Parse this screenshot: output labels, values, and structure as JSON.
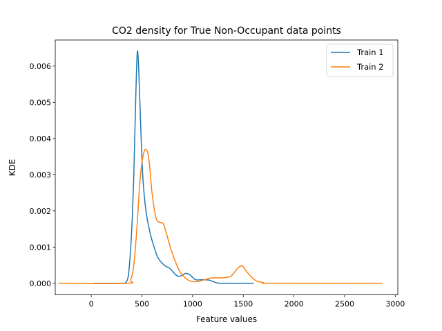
{
  "chart_data": {
    "type": "line",
    "title": "CO2 density for True Non-Occupant data points",
    "xlabel": "Feature values",
    "ylabel": "KDE",
    "xlim": [
      -355,
      3025
    ],
    "ylim": [
      -0.00032,
      0.00672
    ],
    "xticks": [
      0,
      500,
      1000,
      1500,
      2000,
      2500,
      3000
    ],
    "yticks": [
      0.0,
      0.001,
      0.002,
      0.003,
      0.004,
      0.005,
      0.006
    ],
    "ytick_labels": [
      "0.000",
      "0.001",
      "0.002",
      "0.003",
      "0.004",
      "0.005",
      "0.006"
    ],
    "grid": false,
    "legend_position": "top-right",
    "series": [
      {
        "name": "Train 1",
        "color": "#1f77b4",
        "points": [
          [
            30,
            0.0
          ],
          [
            300,
            0.0
          ],
          [
            340,
            2e-05
          ],
          [
            370,
            0.0003
          ],
          [
            400,
            0.0015
          ],
          [
            420,
            0.003
          ],
          [
            440,
            0.0052
          ],
          [
            455,
            0.0064
          ],
          [
            470,
            0.0058
          ],
          [
            490,
            0.0042
          ],
          [
            510,
            0.0029
          ],
          [
            540,
            0.002
          ],
          [
            580,
            0.0014
          ],
          [
            620,
            0.001
          ],
          [
            660,
            0.0007
          ],
          [
            720,
            0.0005
          ],
          [
            780,
            0.0004
          ],
          [
            840,
            0.00022
          ],
          [
            880,
            0.0002
          ],
          [
            930,
            0.00027
          ],
          [
            970,
            0.00024
          ],
          [
            1030,
            0.0001
          ],
          [
            1100,
            0.0001
          ],
          [
            1160,
            9e-05
          ],
          [
            1200,
            5e-05
          ],
          [
            1240,
            1e-05
          ],
          [
            1300,
            0.0
          ],
          [
            1600,
            0.0
          ]
        ]
      },
      {
        "name": "Train 2",
        "color": "#ff7f0e",
        "points": [
          [
            -320,
            0.0
          ],
          [
            350,
            0.0
          ],
          [
            390,
            0.0001
          ],
          [
            420,
            0.0005
          ],
          [
            450,
            0.0015
          ],
          [
            480,
            0.0028
          ],
          [
            510,
            0.0035
          ],
          [
            540,
            0.0037
          ],
          [
            570,
            0.0034
          ],
          [
            600,
            0.0025
          ],
          [
            640,
            0.0018
          ],
          [
            680,
            0.00168
          ],
          [
            710,
            0.00165
          ],
          [
            740,
            0.0014
          ],
          [
            780,
            0.001
          ],
          [
            830,
            0.0006
          ],
          [
            880,
            0.0003
          ],
          [
            950,
            0.0001
          ],
          [
            1000,
            5e-05
          ],
          [
            1060,
            5e-05
          ],
          [
            1120,
            0.0001
          ],
          [
            1200,
            0.00015
          ],
          [
            1300,
            0.00015
          ],
          [
            1380,
            0.0002
          ],
          [
            1440,
            0.0004
          ],
          [
            1490,
            0.00048
          ],
          [
            1540,
            0.0003
          ],
          [
            1620,
            8e-05
          ],
          [
            1700,
            2e-05
          ],
          [
            1800,
            0.0
          ],
          [
            2870,
            0.0
          ]
        ]
      }
    ]
  }
}
